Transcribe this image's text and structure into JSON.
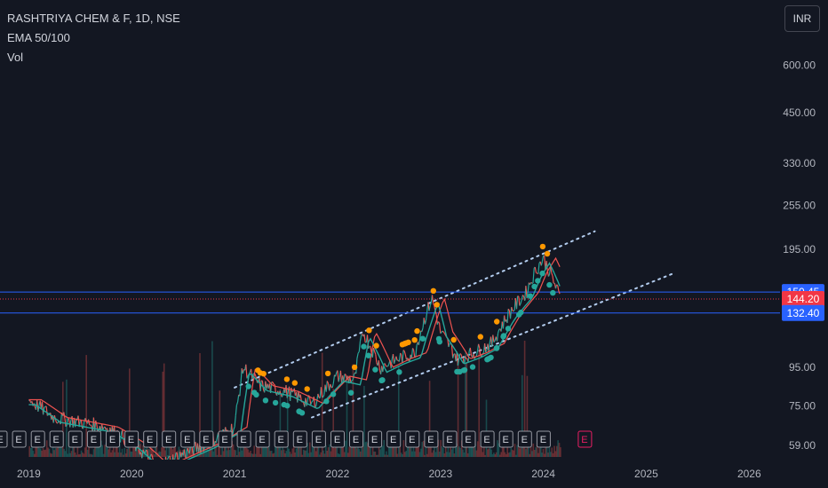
{
  "header": {
    "symbol_line": "RASHTRIYA CHEM & F, 1D, NSE",
    "indicator_ema": "EMA 50/100",
    "indicator_vol": "Vol",
    "currency": "INR"
  },
  "colors": {
    "background": "#131722",
    "ema_fast": "#26a69a",
    "ema_slow": "#ef5350",
    "channel": "#b2ccee",
    "hline": "#2962ff",
    "tag_blue": "#2962ff",
    "tag_red": "#f23645",
    "marker_up": "#26a69a",
    "marker_down": "#ff9800"
  },
  "price_axis": {
    "ticks": [
      "600.00",
      "450.00",
      "330.00",
      "255.00",
      "195.00",
      "95.00",
      "75.00",
      "59.00"
    ],
    "scale": "log"
  },
  "time_axis": {
    "ticks": [
      "2019",
      "2020",
      "2021",
      "2022",
      "2023",
      "2024",
      "2025",
      "2026"
    ]
  },
  "price_tags": [
    {
      "value": "150.45",
      "kind": "line"
    },
    {
      "value": "144.20",
      "kind": "last"
    },
    {
      "value": "132.40",
      "kind": "line"
    }
  ],
  "earnings_markers": {
    "label": "E",
    "count_past": 30,
    "count_future": 1
  },
  "chart_data": {
    "type": "line",
    "title": "RASHTRIYA CHEM & F, 1D, NSE",
    "xlabel": "",
    "ylabel": "",
    "ylim": [
      55,
      720
    ],
    "y_scale": "log",
    "x": [
      "2019-01",
      "2019-04",
      "2019-07",
      "2019-10",
      "2020-01",
      "2020-04",
      "2020-07",
      "2020-10",
      "2021-01",
      "2021-02",
      "2021-04",
      "2021-07",
      "2021-10",
      "2022-01",
      "2022-03",
      "2022-04",
      "2022-06",
      "2022-08",
      "2022-10",
      "2022-12",
      "2023-01",
      "2023-03",
      "2023-05",
      "2023-07",
      "2023-09",
      "2023-11",
      "2023-12",
      "2024-01",
      "2024-02",
      "2024-03"
    ],
    "series": [
      {
        "values": [
          78,
          70,
          68,
          66,
          60,
          52,
          56,
          60,
          66,
          95,
          85,
          82,
          76,
          90,
          88,
          118,
          95,
          100,
          104,
          145,
          118,
          100,
          104,
          110,
          132,
          150,
          170,
          185,
          165,
          144
        ]
      }
    ],
    "channel_upper": {
      "from": [
        "2021-01",
        84
      ],
      "to": [
        "2024-07",
        218
      ]
    },
    "channel_lower": {
      "from": [
        "2021-10",
        70
      ],
      "to": [
        "2025-04",
        168
      ]
    },
    "hlines": [
      150.45,
      144.2,
      132.4
    ],
    "last_price": 144.2,
    "grid": false
  }
}
